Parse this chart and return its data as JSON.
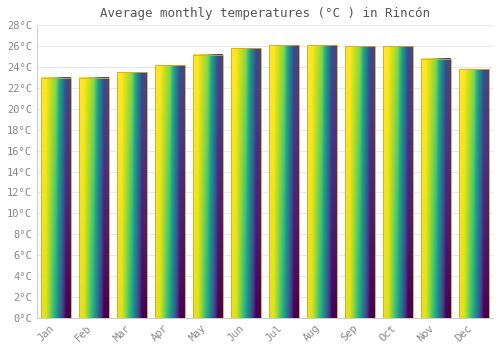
{
  "title": "Average monthly temperatures (°C ) in Rincón",
  "months": [
    "Jan",
    "Feb",
    "Mar",
    "Apr",
    "May",
    "Jun",
    "Jul",
    "Aug",
    "Sep",
    "Oct",
    "Nov",
    "Dec"
  ],
  "values": [
    23.0,
    23.0,
    23.5,
    24.2,
    25.2,
    25.8,
    26.1,
    26.1,
    26.0,
    26.0,
    24.8,
    23.8
  ],
  "bar_color_mid": "#FFD060",
  "bar_color_edge": "#F0A020",
  "background_color": "#ffffff",
  "grid_color": "#e8e8e8",
  "ylim": [
    0,
    28
  ],
  "ytick_max": 28,
  "ytick_step": 2,
  "title_fontsize": 9,
  "tick_fontsize": 7.5
}
